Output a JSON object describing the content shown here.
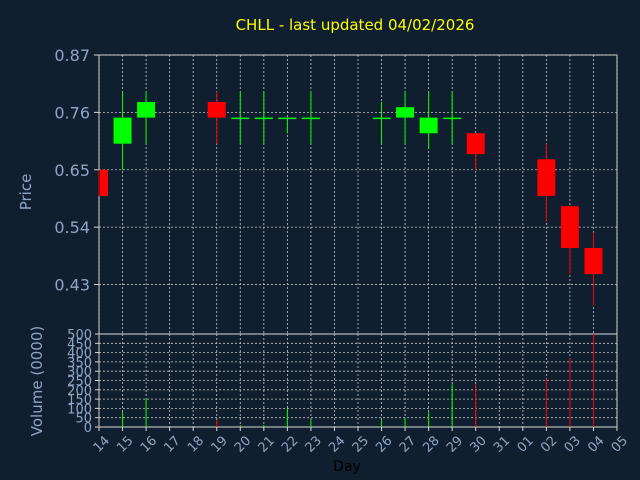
{
  "chart_data": {
    "type": "candlestick",
    "title": "CHLL - last updated 04/02/2026",
    "xlabel": "Day",
    "price_ylabel": "Price",
    "volume_ylabel": "Volume (0000)",
    "price_ticks": [
      "0.87",
      "0.76",
      "0.65",
      "0.54",
      "0.43"
    ],
    "price_tick_values": [
      0.87,
      0.76,
      0.65,
      0.54,
      0.43
    ],
    "price_ylim": [
      0.3352,
      0.87
    ],
    "volume_ticks": [
      "500",
      "450",
      "400",
      "350",
      "300",
      "250",
      "200",
      "150",
      "100",
      "50",
      "0"
    ],
    "volume_tick_values": [
      500,
      450,
      400,
      350,
      300,
      250,
      200,
      150,
      100,
      50,
      0
    ],
    "volume_ylim": [
      0,
      500
    ],
    "x_ticks": [
      "14",
      "15",
      "16",
      "17",
      "18",
      "19",
      "20",
      "21",
      "22",
      "23",
      "24",
      "25",
      "26",
      "27",
      "28",
      "29",
      "30",
      "31",
      "01",
      "02",
      "03",
      "04",
      "05"
    ],
    "up_color": "#00ff00",
    "down_color": "#ff0000",
    "grid": true,
    "candles": [
      {
        "x": "14",
        "open": 0.65,
        "high": 0.65,
        "low": 0.6,
        "close": 0.6,
        "volume": 2
      },
      {
        "x": "15",
        "open": 0.7,
        "high": 0.8,
        "low": 0.65,
        "close": 0.75,
        "volume": 80
      },
      {
        "x": "16",
        "open": 0.75,
        "high": 0.8,
        "low": 0.7,
        "close": 0.78,
        "volume": 150
      },
      {
        "x": "19",
        "open": 0.78,
        "high": 0.8,
        "low": 0.7,
        "close": 0.75,
        "volume": 40
      },
      {
        "x": "20",
        "open": 0.75,
        "high": 0.8,
        "low": 0.7,
        "close": 0.75,
        "volume": 10
      },
      {
        "x": "21",
        "open": 0.75,
        "high": 0.8,
        "low": 0.7,
        "close": 0.75,
        "volume": 10
      },
      {
        "x": "22",
        "open": 0.75,
        "high": 0.75,
        "low": 0.72,
        "close": 0.75,
        "volume": 100
      },
      {
        "x": "23",
        "open": 0.75,
        "high": 0.8,
        "low": 0.7,
        "close": 0.75,
        "volume": 40
      },
      {
        "x": "26",
        "open": 0.75,
        "high": 0.78,
        "low": 0.7,
        "close": 0.75,
        "volume": 40
      },
      {
        "x": "27",
        "open": 0.75,
        "high": 0.8,
        "low": 0.7,
        "close": 0.77,
        "volume": 50
      },
      {
        "x": "28",
        "open": 0.72,
        "high": 0.8,
        "low": 0.69,
        "close": 0.75,
        "volume": 80
      },
      {
        "x": "29",
        "open": 0.75,
        "high": 0.8,
        "low": 0.7,
        "close": 0.75,
        "volume": 230
      },
      {
        "x": "30",
        "open": 0.72,
        "high": 0.72,
        "low": 0.65,
        "close": 0.68,
        "volume": 230
      },
      {
        "x": "02",
        "open": 0.67,
        "high": 0.7,
        "low": 0.55,
        "close": 0.6,
        "volume": 260
      },
      {
        "x": "03",
        "open": 0.58,
        "high": 0.58,
        "low": 0.45,
        "close": 0.5,
        "volume": 370
      },
      {
        "x": "04",
        "open": 0.5,
        "high": 0.53,
        "low": 0.39,
        "close": 0.45,
        "volume": 500
      }
    ]
  }
}
